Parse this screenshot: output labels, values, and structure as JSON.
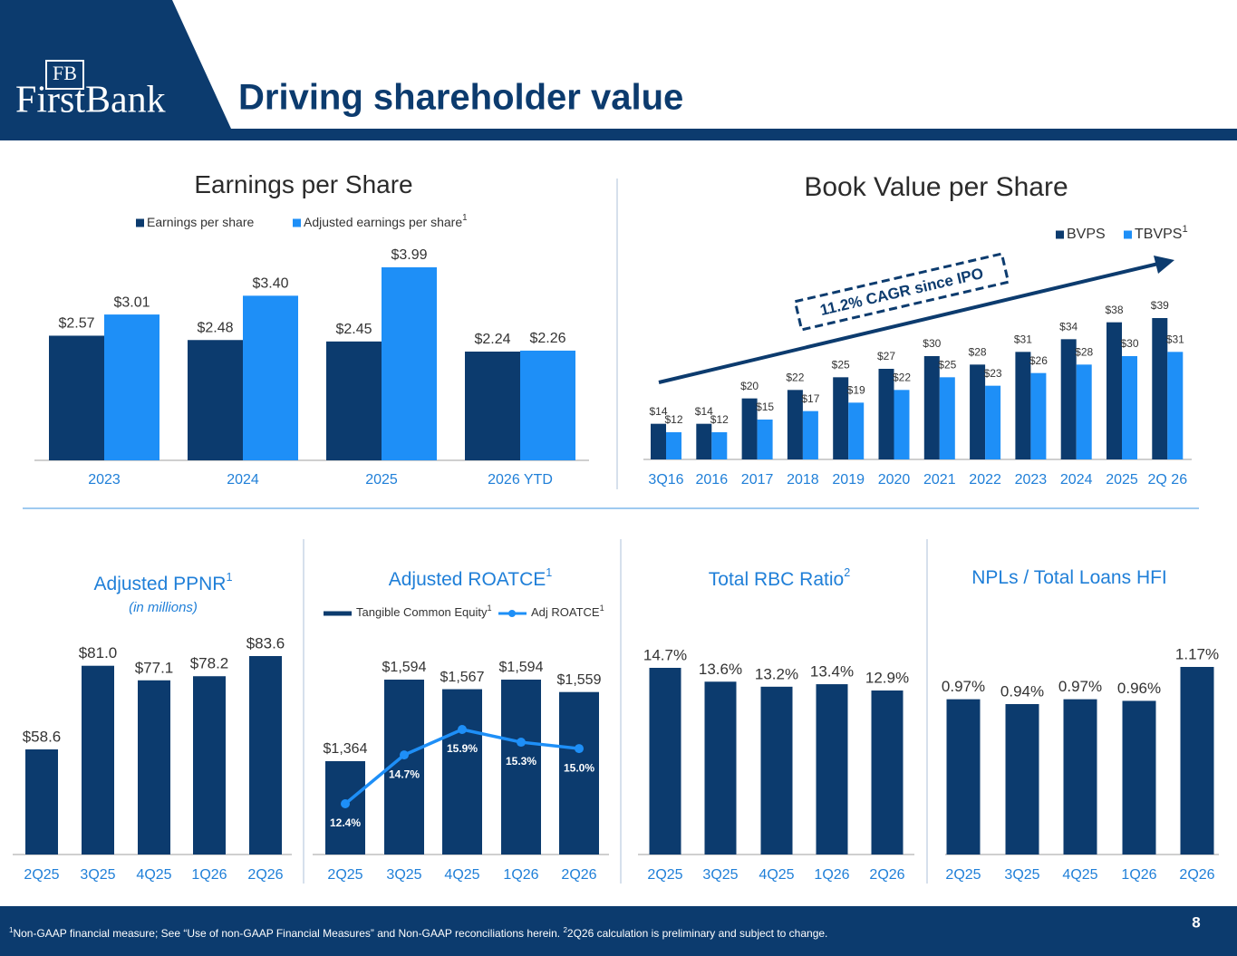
{
  "header": {
    "logo_monogram": "FB",
    "logo_name": "FirstBank",
    "title": "Driving shareholder value"
  },
  "chart_data": [
    {
      "type": "bar",
      "title": "Earnings per Share",
      "categories": [
        "2023",
        "2024",
        "2025",
        "2026 YTD"
      ],
      "series": [
        {
          "name": "Earnings per share",
          "color": "#0c3b6e",
          "values": [
            2.57,
            2.48,
            2.45,
            2.24
          ],
          "value_labels": [
            "$2.57",
            "$2.48",
            "$2.45",
            "$2.24"
          ]
        },
        {
          "name": "Adjusted earnings per share",
          "note": "1",
          "color": "#1e8ff7",
          "values": [
            3.01,
            3.4,
            3.99,
            2.26
          ],
          "value_labels": [
            "$3.01",
            "$3.40",
            "$3.99",
            "$2.26"
          ]
        }
      ]
    },
    {
      "type": "bar",
      "title": "Book Value per Share",
      "annotation": "11.2% CAGR since IPO",
      "categories": [
        "3Q16",
        "2016",
        "2017",
        "2018",
        "2019",
        "2020",
        "2021",
        "2022",
        "2023",
        "2024",
        "2025",
        "2Q 26"
      ],
      "series": [
        {
          "name": "BVPS",
          "color": "#0c3b6e",
          "values": [
            14,
            14,
            20,
            22,
            25,
            27,
            30,
            28,
            31,
            34,
            38,
            39
          ],
          "value_labels": [
            "$14",
            "$14",
            "$20",
            "$22",
            "$25",
            "$27",
            "$30",
            "$28",
            "$31",
            "$34",
            "$38",
            "$39"
          ]
        },
        {
          "name": "TBVPS",
          "note": "1",
          "color": "#1e8ff7",
          "values": [
            12,
            12,
            15,
            17,
            19,
            22,
            25,
            23,
            26,
            28,
            30,
            31
          ],
          "value_labels": [
            "$12",
            "$12",
            "$15",
            "$17",
            "$19",
            "$22",
            "$25",
            "$23",
            "$26",
            "$28",
            "$30",
            "$31"
          ]
        }
      ]
    },
    {
      "type": "bar",
      "title": "Adjusted PPNR",
      "title_note": "1",
      "subtitle": "(in millions)",
      "categories": [
        "2Q25",
        "3Q25",
        "4Q25",
        "1Q26",
        "2Q26"
      ],
      "color": "#0c3b6e",
      "values": [
        58.6,
        81.0,
        77.1,
        78.2,
        83.6
      ],
      "value_labels": [
        "$58.6",
        "$81.0",
        "$77.1",
        "$78.2",
        "$83.6"
      ]
    },
    {
      "type": "combo",
      "title": "Adjusted ROATCE",
      "title_note": "1",
      "categories": [
        "2Q25",
        "3Q25",
        "4Q25",
        "1Q26",
        "2Q26"
      ],
      "series": [
        {
          "name": "Tangible Common Equity",
          "note": "1",
          "type": "bar",
          "color": "#0c3b6e",
          "values": [
            1364,
            1594,
            1567,
            1594,
            1559
          ],
          "value_labels": [
            "$1,364",
            "$1,594",
            "$1,567",
            "$1,594",
            "$1,559"
          ]
        },
        {
          "name": "Adj ROATCE",
          "note": "1",
          "type": "line",
          "axis": "y2",
          "color": "#1e8ff7",
          "values": [
            12.4,
            14.7,
            15.9,
            15.3,
            15.0
          ],
          "value_labels": [
            "12.4%",
            "14.7%",
            "15.9%",
            "15.3%",
            "15.0%"
          ]
        }
      ]
    },
    {
      "type": "bar",
      "title": "Total RBC Ratio",
      "title_note": "2",
      "categories": [
        "2Q25",
        "3Q25",
        "4Q25",
        "1Q26",
        "2Q26"
      ],
      "color": "#0c3b6e",
      "values": [
        14.7,
        13.6,
        13.2,
        13.4,
        12.9
      ],
      "value_labels": [
        "14.7%",
        "13.6%",
        "13.2%",
        "13.4%",
        "12.9%"
      ]
    },
    {
      "type": "bar",
      "title": "NPLs / Total Loans HFI",
      "categories": [
        "2Q25",
        "3Q25",
        "4Q25",
        "1Q26",
        "2Q26"
      ],
      "color": "#0c3b6e",
      "values": [
        0.97,
        0.94,
        0.97,
        0.96,
        1.17
      ],
      "value_labels": [
        "0.97%",
        "0.94%",
        "0.97%",
        "0.96%",
        "1.17%"
      ]
    }
  ],
  "footer": {
    "footnotes": [
      {
        "mark": "1",
        "text": "Non-GAAP financial measure; See “Use of non-GAAP Financial Measures” and Non-GAAP reconciliations herein."
      },
      {
        "mark": "2",
        "text": "2Q26 calculation is preliminary and subject to change."
      }
    ],
    "page_number": "8"
  }
}
